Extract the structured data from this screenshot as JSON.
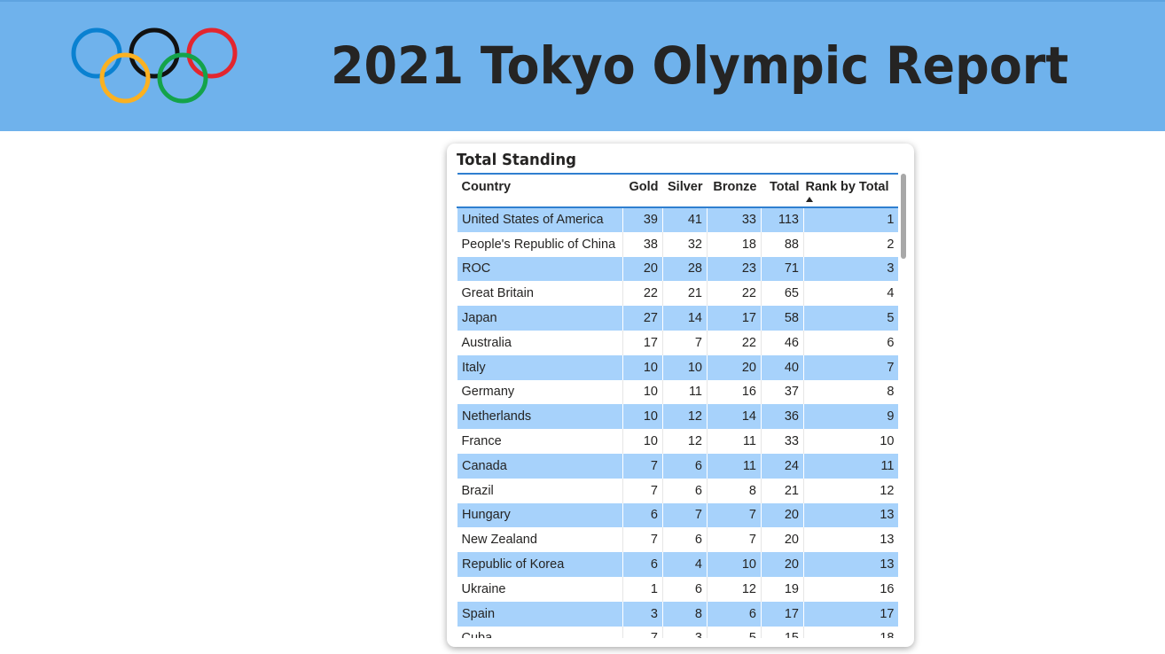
{
  "header": {
    "title": "2021 Tokyo Olympic Report",
    "colors": {
      "background": "#6fb2ec",
      "ring_blue": "#0a81d1",
      "ring_black": "#111111",
      "ring_red": "#e3262f",
      "ring_yellow": "#fbb121",
      "ring_green": "#14a34a"
    },
    "logo_icon": "olympic-rings-icon"
  },
  "standing": {
    "title": "Total Standing",
    "columns": [
      "Country",
      "Gold",
      "Silver",
      "Bronze",
      "Total",
      "Rank by Total"
    ],
    "sorted_column": "Rank by Total",
    "rows": [
      [
        "United States of America",
        "39",
        "41",
        "33",
        "113",
        "1"
      ],
      [
        "People's Republic of China",
        "38",
        "32",
        "18",
        "88",
        "2"
      ],
      [
        "ROC",
        "20",
        "28",
        "23",
        "71",
        "3"
      ],
      [
        "Great Britain",
        "22",
        "21",
        "22",
        "65",
        "4"
      ],
      [
        "Japan",
        "27",
        "14",
        "17",
        "58",
        "5"
      ],
      [
        "Australia",
        "17",
        "7",
        "22",
        "46",
        "6"
      ],
      [
        "Italy",
        "10",
        "10",
        "20",
        "40",
        "7"
      ],
      [
        "Germany",
        "10",
        "11",
        "16",
        "37",
        "8"
      ],
      [
        "Netherlands",
        "10",
        "12",
        "14",
        "36",
        "9"
      ],
      [
        "France",
        "10",
        "12",
        "11",
        "33",
        "10"
      ],
      [
        "Canada",
        "7",
        "6",
        "11",
        "24",
        "11"
      ],
      [
        "Brazil",
        "7",
        "6",
        "8",
        "21",
        "12"
      ],
      [
        "Hungary",
        "6",
        "7",
        "7",
        "20",
        "13"
      ],
      [
        "New Zealand",
        "7",
        "6",
        "7",
        "20",
        "13"
      ],
      [
        "Republic of Korea",
        "6",
        "4",
        "10",
        "20",
        "13"
      ],
      [
        "Ukraine",
        "1",
        "6",
        "12",
        "19",
        "16"
      ],
      [
        "Spain",
        "3",
        "8",
        "6",
        "17",
        "17"
      ],
      [
        "Cuba",
        "7",
        "3",
        "5",
        "15",
        "18"
      ]
    ],
    "row_highlight_color": "#a7d2fb"
  }
}
